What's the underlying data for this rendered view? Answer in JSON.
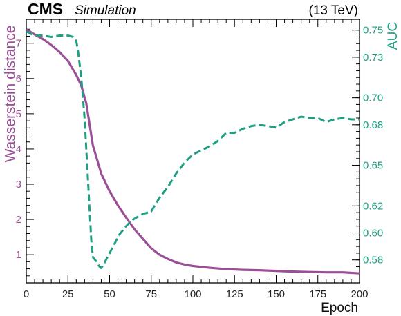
{
  "header": {
    "experiment": "CMS",
    "status": "Simulation",
    "energy": "(13 TeV)"
  },
  "chart_data": {
    "type": "line",
    "title": "",
    "xlabel": "Epoch",
    "ylabel_left": "Wasserstein distance",
    "ylabel_right": "AUC",
    "xlim": [
      0,
      200
    ],
    "ylim_left": [
      0.2,
      7.68
    ],
    "ylim_right": [
      0.563,
      0.758
    ],
    "x_ticks": [
      "0",
      "25",
      "50",
      "75",
      "100",
      "125",
      "150",
      "175",
      "200"
    ],
    "y_left_ticks": [
      "1",
      "2",
      "3",
      "4",
      "5",
      "6",
      "7"
    ],
    "y_right_ticks": [
      "0.58",
      "0.60",
      "0.62",
      "0.65",
      "0.68",
      "0.70",
      "0.73",
      "0.75"
    ],
    "grid": false,
    "series": [
      {
        "name": "Wasserstein distance",
        "axis": "left",
        "color": "#9b4f96",
        "style": "solid",
        "x": [
          0,
          5,
          10,
          15,
          20,
          25,
          30,
          33,
          36,
          40,
          45,
          50,
          55,
          60,
          65,
          70,
          75,
          80,
          85,
          90,
          95,
          100,
          110,
          120,
          130,
          140,
          150,
          155,
          160,
          170,
          180,
          190,
          200
        ],
        "y": [
          7.4,
          7.25,
          7.12,
          6.95,
          6.75,
          6.5,
          6.1,
          5.8,
          5.3,
          4.1,
          3.3,
          2.8,
          2.4,
          2.05,
          1.72,
          1.45,
          1.18,
          1.0,
          0.88,
          0.78,
          0.72,
          0.68,
          0.63,
          0.59,
          0.57,
          0.56,
          0.54,
          0.53,
          0.52,
          0.51,
          0.5,
          0.5,
          0.47
        ]
      },
      {
        "name": "AUC",
        "axis": "right",
        "color": "#1fa083",
        "style": "dashed",
        "x": [
          0,
          5,
          10,
          15,
          20,
          25,
          28,
          30,
          31,
          33,
          35,
          37,
          39,
          40,
          42,
          44,
          45,
          47,
          50,
          53,
          56,
          60,
          63,
          67,
          70,
          73,
          75,
          80,
          85,
          90,
          95,
          100,
          105,
          110,
          115,
          120,
          125,
          130,
          135,
          140,
          145,
          150,
          155,
          160,
          165,
          170,
          175,
          180,
          185,
          190,
          195,
          200
        ],
        "y": [
          0.749,
          0.746,
          0.746,
          0.745,
          0.746,
          0.746,
          0.745,
          0.742,
          0.735,
          0.715,
          0.685,
          0.64,
          0.595,
          0.582,
          0.579,
          0.575,
          0.574,
          0.578,
          0.585,
          0.592,
          0.599,
          0.605,
          0.609,
          0.612,
          0.614,
          0.615,
          0.616,
          0.626,
          0.634,
          0.644,
          0.652,
          0.658,
          0.661,
          0.664,
          0.668,
          0.674,
          0.674,
          0.677,
          0.679,
          0.68,
          0.679,
          0.678,
          0.682,
          0.684,
          0.686,
          0.685,
          0.685,
          0.682,
          0.684,
          0.685,
          0.684,
          0.684
        ]
      }
    ]
  }
}
